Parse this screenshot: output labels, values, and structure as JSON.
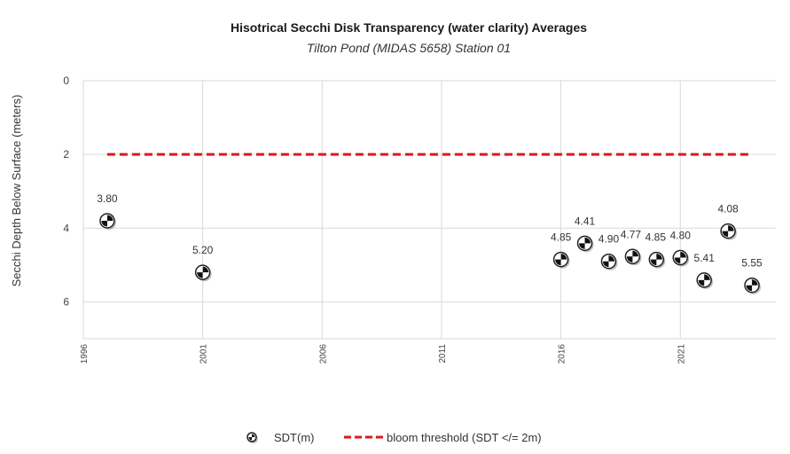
{
  "chart_data": {
    "type": "scatter",
    "title": "Hisotrical Secchi Disk Transparency (water clarity) Averages",
    "subtitle": "Tilton Pond (MIDAS 5658) Station 01",
    "xlabel": "",
    "ylabel": "Secchi Depth Below Surface (meters)",
    "xlim": [
      1996,
      2025
    ],
    "ylim": [
      0,
      7
    ],
    "y_inverted": true,
    "x_ticks": [
      "1996",
      "2001",
      "2006",
      "2011",
      "2016",
      "2021"
    ],
    "y_ticks": [
      "0",
      "2",
      "4",
      "6"
    ],
    "grid": true,
    "legend_position": "bottom",
    "series": [
      {
        "name": "SDT(m)",
        "type": "scatter",
        "marker": "secchi-disk",
        "points": [
          {
            "x": 1997,
            "y": 3.8,
            "label": "3.80"
          },
          {
            "x": 2001,
            "y": 5.2,
            "label": "5.20"
          },
          {
            "x": 2016,
            "y": 4.85,
            "label": "4.85"
          },
          {
            "x": 2017,
            "y": 4.41,
            "label": "4.41"
          },
          {
            "x": 2018,
            "y": 4.9,
            "label": "4.90"
          },
          {
            "x": 2019,
            "y": 4.77,
            "label": "4.77"
          },
          {
            "x": 2020,
            "y": 4.85,
            "label": "4.85"
          },
          {
            "x": 2021,
            "y": 4.8,
            "label": "4.80"
          },
          {
            "x": 2022,
            "y": 5.41,
            "label": "5.41"
          },
          {
            "x": 2023,
            "y": 4.08,
            "label": "4.08"
          },
          {
            "x": 2024,
            "y": 5.55,
            "label": "5.55"
          }
        ]
      },
      {
        "name": "bloom threshold (SDT </= 2m)",
        "type": "line",
        "style": "dashed",
        "color": "#e0161d",
        "points": [
          {
            "x": 1997,
            "y": 2
          },
          {
            "x": 2024,
            "y": 2
          }
        ]
      }
    ]
  }
}
